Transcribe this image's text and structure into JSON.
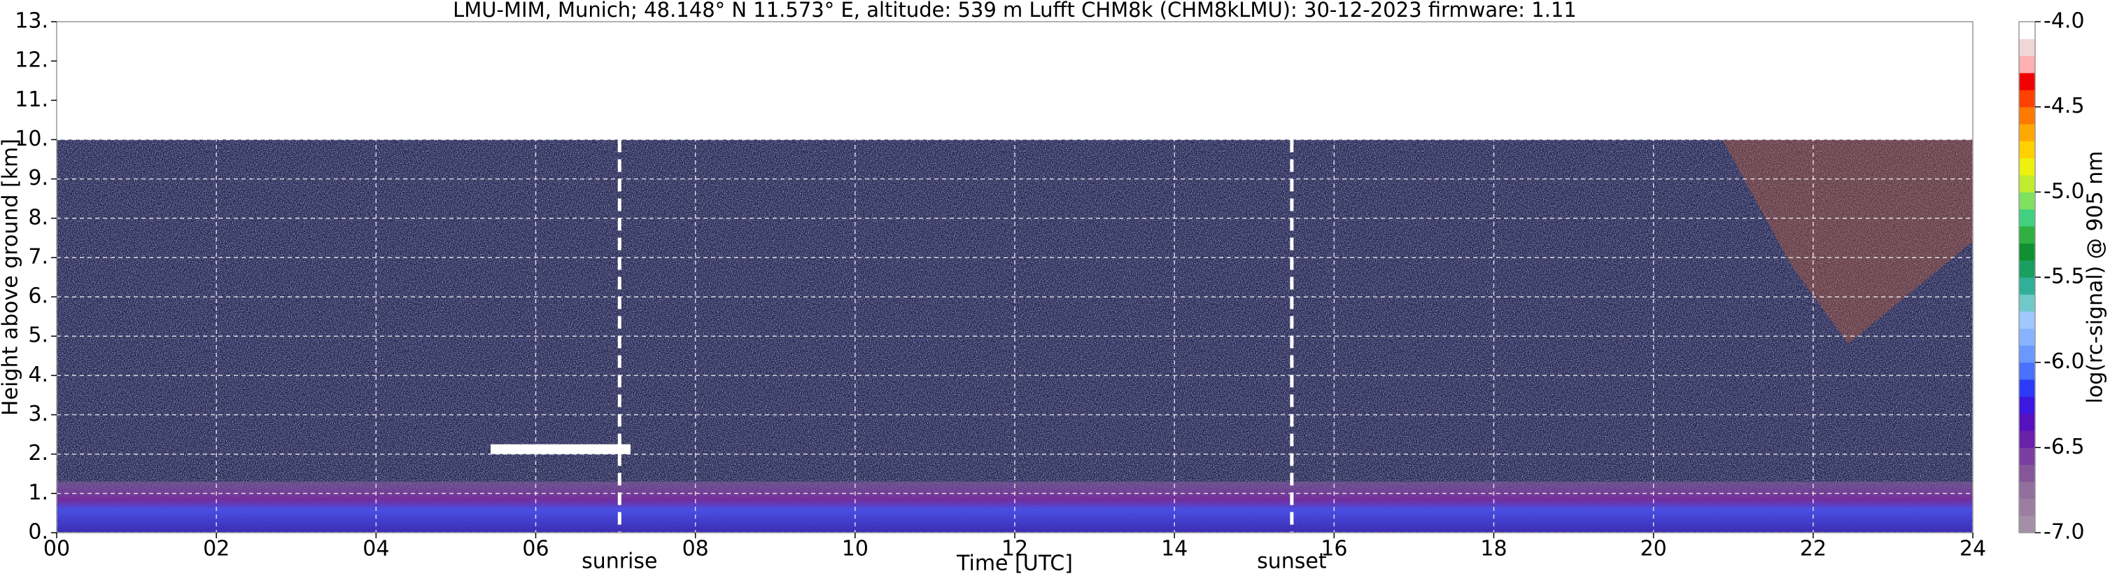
{
  "chart_data": {
    "type": "heatmap",
    "title": "LMU-MIM, Munich; 48.148° N 11.573° E, altitude: 539 m    Lufft CHM8k (CHM8kLMU): 30-12-2023    firmware: 1.11",
    "x_label": "Time [UTC]",
    "y_label": "Height above ground [km]",
    "colorbar_label": "log(rc-signal) @ 905 nm",
    "xlim": [
      0,
      24
    ],
    "xticks": [
      {
        "value": 0,
        "label": "00"
      },
      {
        "value": 2,
        "label": "02"
      },
      {
        "value": 4,
        "label": "04"
      },
      {
        "value": 6,
        "label": "06"
      },
      {
        "value": 8,
        "label": "08"
      },
      {
        "value": 10,
        "label": "10"
      },
      {
        "value": 12,
        "label": "12"
      },
      {
        "value": 14,
        "label": "14"
      },
      {
        "value": 16,
        "label": "16"
      },
      {
        "value": 18,
        "label": "18"
      },
      {
        "value": 20,
        "label": "20"
      },
      {
        "value": 22,
        "label": "22"
      },
      {
        "value": 24,
        "label": "24"
      }
    ],
    "ylim": [
      0,
      13
    ],
    "yticks": [
      {
        "value": 0,
        "label": "0."
      },
      {
        "value": 1,
        "label": "1."
      },
      {
        "value": 2,
        "label": "2."
      },
      {
        "value": 3,
        "label": "3."
      },
      {
        "value": 4,
        "label": "4."
      },
      {
        "value": 5,
        "label": "5."
      },
      {
        "value": 6,
        "label": "6."
      },
      {
        "value": 7,
        "label": "7."
      },
      {
        "value": 8,
        "label": "8."
      },
      {
        "value": 9,
        "label": "9."
      },
      {
        "value": 10,
        "label": "10."
      },
      {
        "value": 11,
        "label": "11."
      },
      {
        "value": 12,
        "label": "12."
      },
      {
        "value": 13,
        "label": "13."
      }
    ],
    "clim": [
      -7,
      -4
    ],
    "cticks": [
      {
        "value": -7,
        "label": "-7.0"
      },
      {
        "value": -6.5,
        "label": "-6.5"
      },
      {
        "value": -6,
        "label": "-6.0"
      },
      {
        "value": -5.5,
        "label": "-5.5"
      },
      {
        "value": -5,
        "label": "-5.0"
      },
      {
        "value": -4.5,
        "label": "-4.5"
      },
      {
        "value": -4,
        "label": "-4.0"
      }
    ],
    "colors": [
      "#a58fa8",
      "#9c7fa0",
      "#926f9c",
      "#86569a",
      "#7a3ea0",
      "#6a20a8",
      "#5510c0",
      "#3a18e0",
      "#2a3af8",
      "#4a70ff",
      "#6a98ff",
      "#88b4ff",
      "#a0c8ff",
      "#70c8c8",
      "#30b098",
      "#18a060",
      "#109030",
      "#30b040",
      "#40d080",
      "#80e060",
      "#c0ec30",
      "#eef010",
      "#ffd000",
      "#ffa800",
      "#ff7800",
      "#ff4000",
      "#f00000",
      "#ffb0b0",
      "#f0d8d8",
      "#ffffff"
    ],
    "grid": true,
    "annotations": [
      {
        "text": "sunrise",
        "x": 7.05
      },
      {
        "text": "sunset",
        "x": 15.47
      }
    ]
  }
}
